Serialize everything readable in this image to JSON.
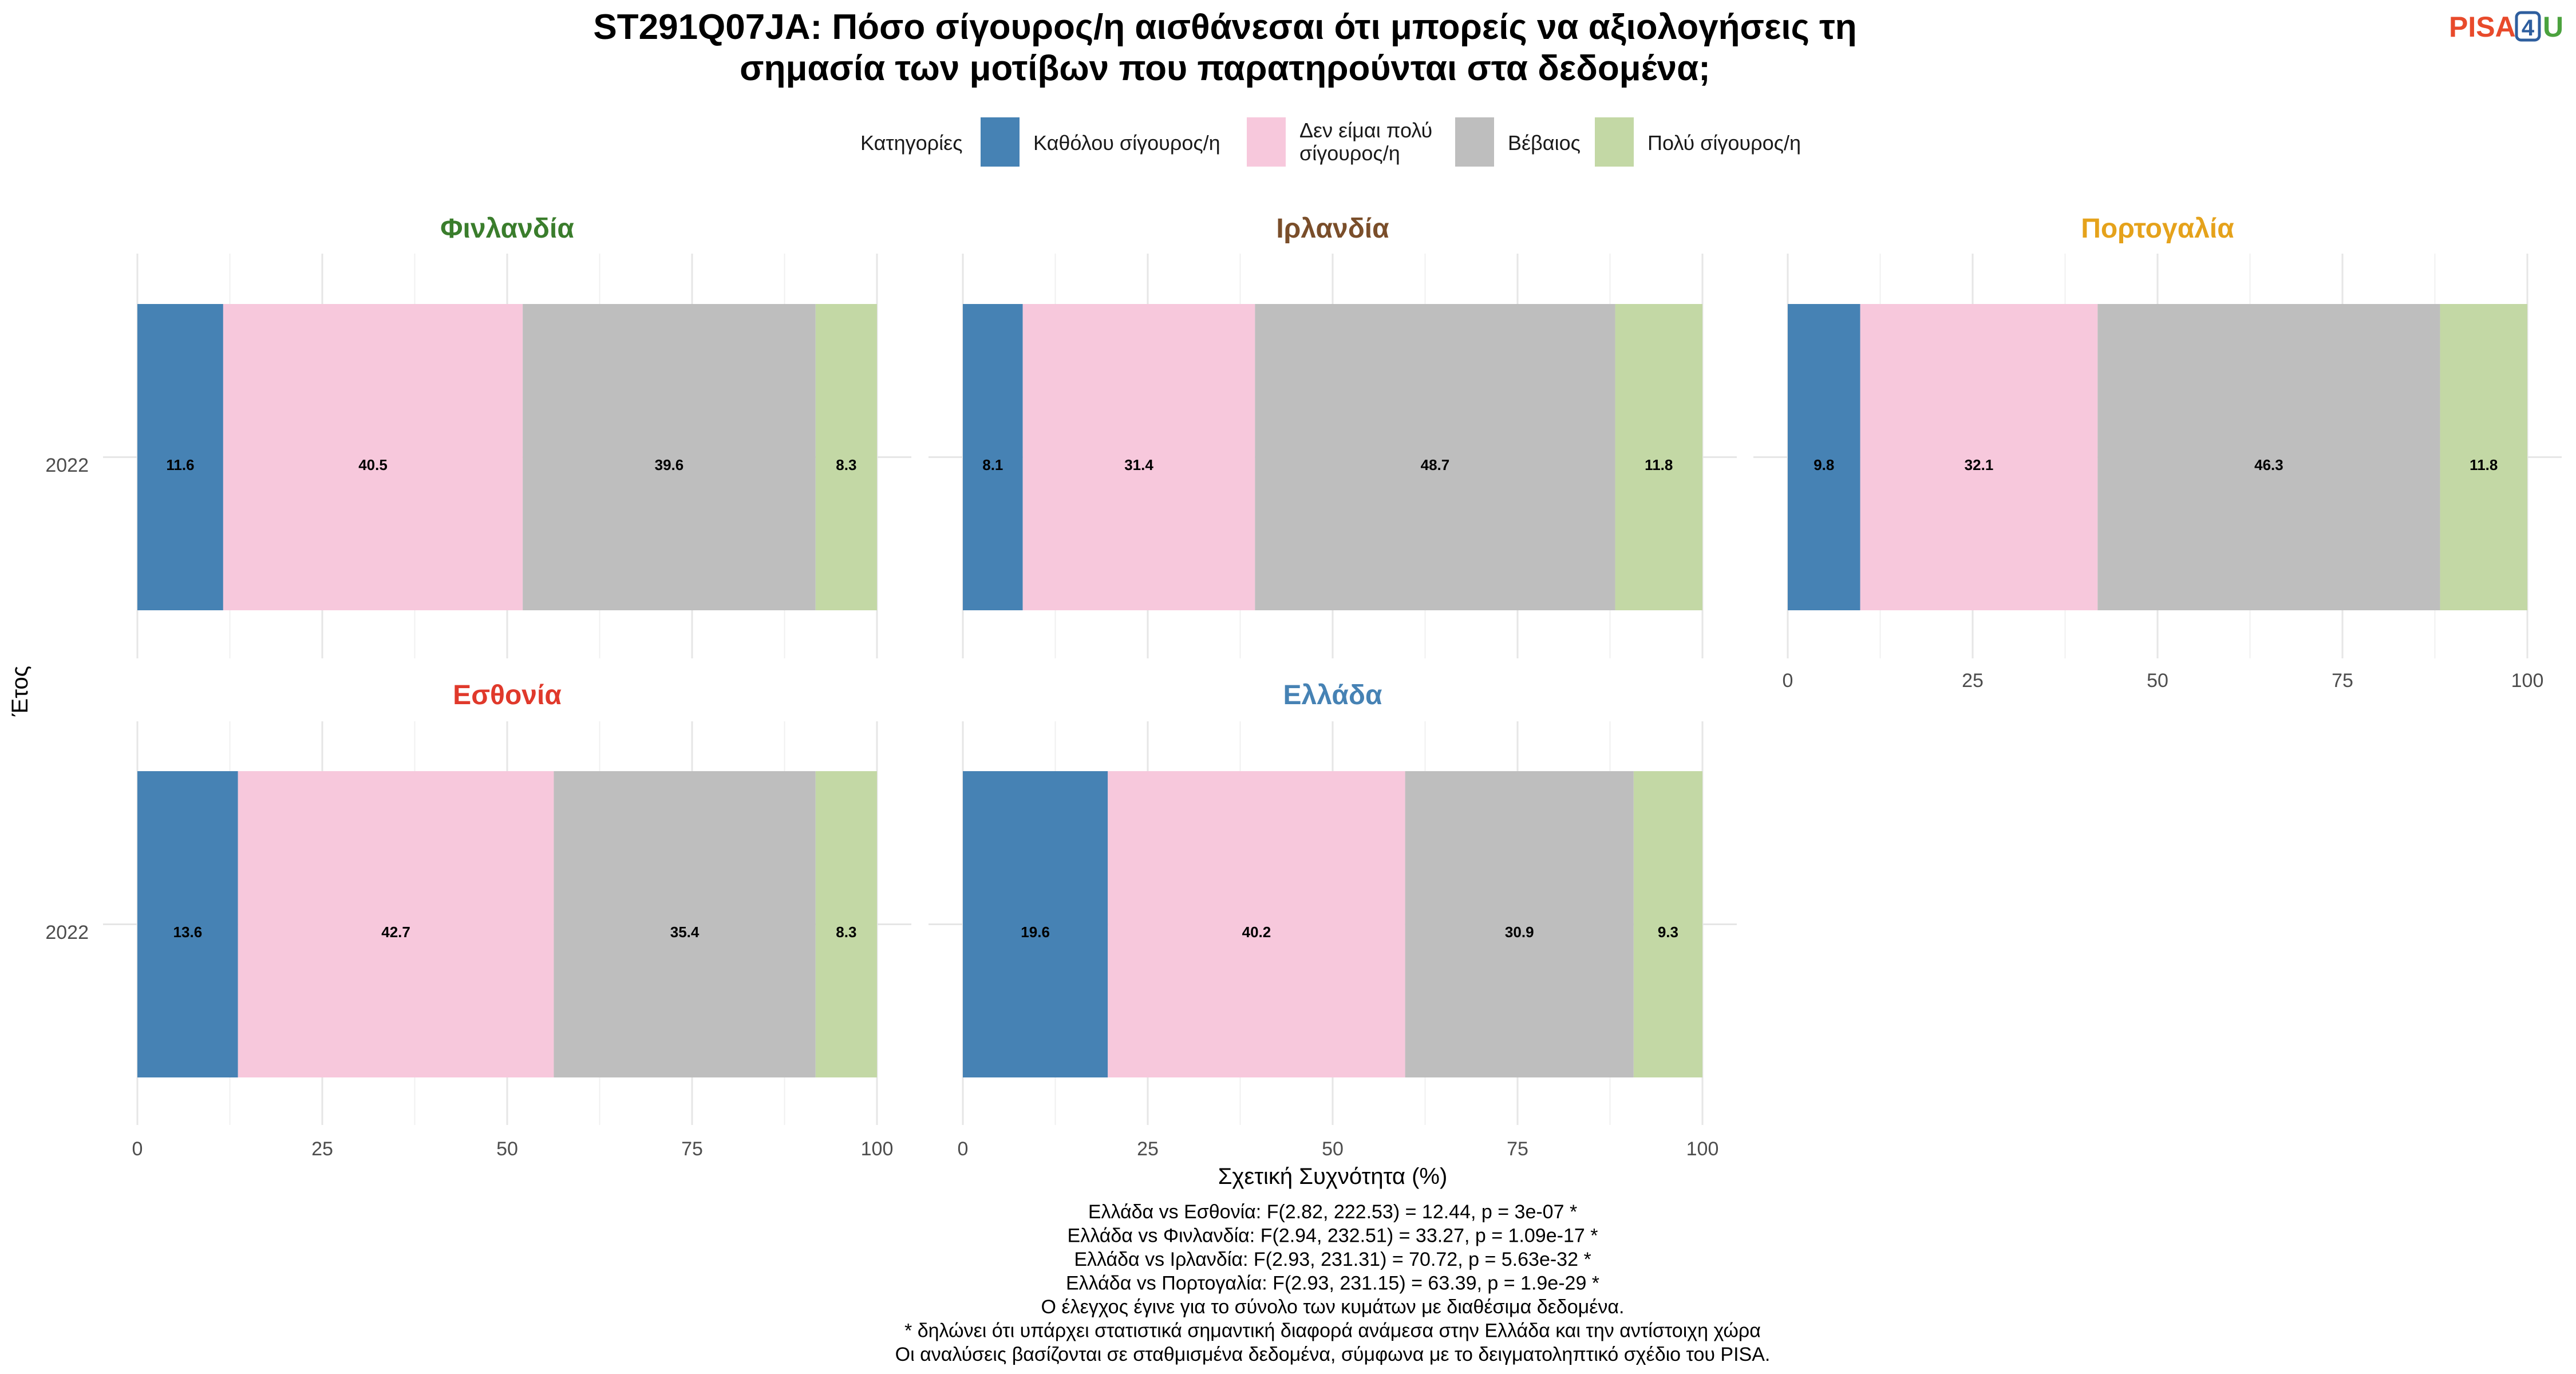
{
  "logo": {
    "part1": "PISA",
    "part2": "4",
    "part3": "U"
  },
  "chart_data": {
    "type": "bar",
    "orientation": "horizontal",
    "stacked": true,
    "title": [
      "ST291Q07JA: Πόσο σίγουρος/η αισθάνεσαι ότι μπορείς να αξιολογήσεις τη",
      "σημασία των μοτίβων που παρατηρούνται στα δεδομένα;"
    ],
    "xlabel": "Σχετική Συχνότητα (%)",
    "ylabel": "Έτος",
    "xlim": [
      0,
      100
    ],
    "xticks": [
      "0",
      "25",
      "50",
      "75",
      "100"
    ],
    "legend": {
      "title": "Κατηγορίες",
      "position": "top",
      "entries": [
        {
          "label": [
            "Καθόλου σίγουρος/η"
          ],
          "color": "#4682B4"
        },
        {
          "label": [
            "Δεν είμαι πολύ",
            "σίγουρος/η"
          ],
          "color": "#F7C8DC"
        },
        {
          "label": [
            "Βέβαιος"
          ],
          "color": "#BEBEBE"
        },
        {
          "label": [
            "Πολύ σίγουρος/η"
          ],
          "color": "#C3D8A5"
        }
      ]
    },
    "categories": [
      "Καθόλου σίγουρος/η",
      "Δεν είμαι πολύ σίγουρος/η",
      "Βέβαιος",
      "Πολύ σίγουρος/η"
    ],
    "panels": [
      {
        "country": "Φινλανδία",
        "color": "#3A7D2C",
        "year": "2022",
        "values": [
          11.6,
          40.5,
          39.6,
          8.3
        ]
      },
      {
        "country": "Ιρλανδία",
        "color": "#7A4E2A",
        "year": "2022",
        "values": [
          8.1,
          31.4,
          48.7,
          11.8
        ]
      },
      {
        "country": "Πορτογαλία",
        "color": "#E5A21B",
        "year": "2022",
        "values": [
          9.8,
          32.1,
          46.3,
          11.8
        ]
      },
      {
        "country": "Εσθονία",
        "color": "#E0392B",
        "year": "2022",
        "values": [
          13.6,
          42.7,
          35.4,
          8.3
        ]
      },
      {
        "country": "Ελλάδα",
        "color": "#4682B4",
        "year": "2022",
        "values": [
          19.6,
          40.2,
          30.9,
          9.3
        ]
      }
    ],
    "grid": true,
    "caption": [
      "Ελλάδα vs Εσθονία: F(2.82, 222.53) = 12.44, p = 3e-07 *",
      "Ελλάδα vs Φινλανδία: F(2.94, 232.51) = 33.27, p = 1.09e-17 *",
      "Ελλάδα vs Ιρλανδία: F(2.93, 231.31) = 70.72, p = 5.63e-32 *",
      "Ελλάδα vs Πορτογαλία: F(2.93, 231.15) = 63.39, p = 1.9e-29 *",
      "Ο έλεγχος έγινε για το σύνολο των κυμάτων με διαθέσιμα δεδομένα.",
      "* δηλώνει ότι υπάρχει στατιστικά σημαντική διαφορά ανάμεσα στην Ελλάδα και την αντίστοιχη χώρα",
      "Οι αναλύσεις βασίζονται σε σταθμισμένα δεδομένα, σύμφωνα με το δειγματοληπτικό σχέδιο του PISA."
    ]
  }
}
